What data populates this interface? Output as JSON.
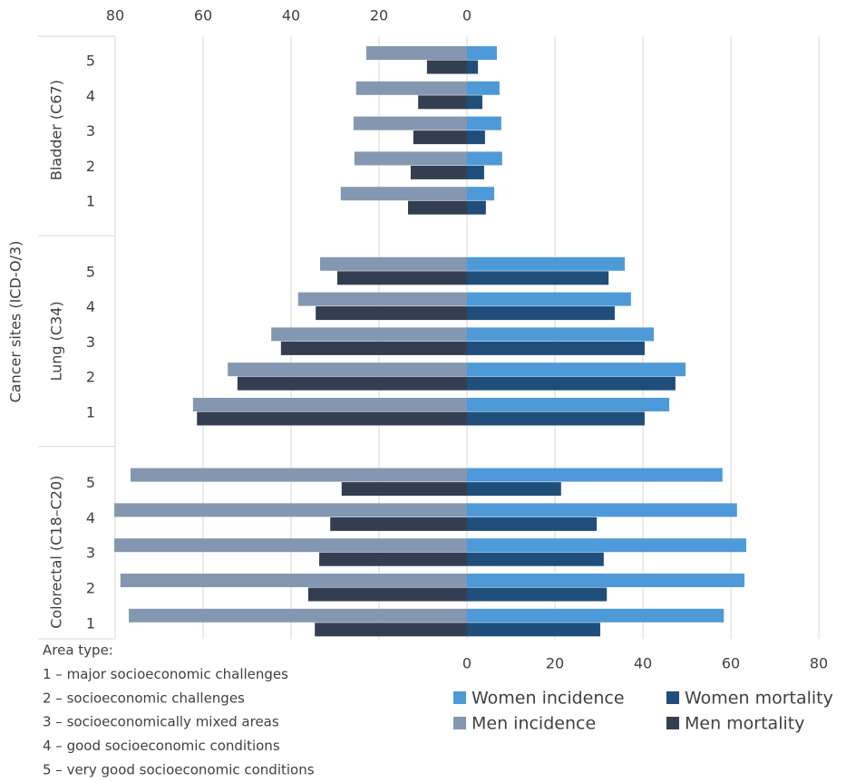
{
  "chart_data": {
    "type": "bar",
    "orientation": "horizontal",
    "y_axis_label": "Cancer sites (ICD-O/3)",
    "groups": [
      "Bladder (C67)",
      "Lung (C34)",
      "Colorectal (C18–C20)"
    ],
    "categories": [
      "5",
      "4",
      "3",
      "2",
      "1",
      "5",
      "4",
      "3",
      "2",
      "1",
      "5",
      "4",
      "3",
      "2",
      "1"
    ],
    "xlim": [
      0,
      80
    ],
    "xticks": [
      0,
      20,
      40,
      60,
      80
    ],
    "x2lim": [
      80,
      0
    ],
    "x2ticks": [
      80,
      60,
      40,
      20,
      0
    ],
    "grid": true,
    "series": [
      {
        "name": "Women incidence",
        "color": "#4e9ad8",
        "values": [
          6.8,
          7.4,
          7.8,
          8.0,
          6.2,
          35.9,
          37.3,
          42.5,
          49.7,
          46.0,
          58.1,
          61.4,
          63.5,
          63.1,
          58.4
        ]
      },
      {
        "name": "Women mortality",
        "color": "#1f4e7a",
        "values": [
          2.5,
          3.5,
          4.1,
          3.9,
          4.3,
          32.2,
          33.6,
          40.4,
          47.4,
          40.4,
          21.4,
          29.5,
          31.1,
          31.8,
          30.3
        ]
      },
      {
        "name": "Men incidence",
        "color": "#8497b0",
        "axis": "x2",
        "values": [
          22.9,
          25.2,
          25.8,
          25.6,
          28.7,
          33.4,
          38.4,
          44.5,
          54.4,
          62.3,
          76.5,
          80.2,
          80.2,
          78.8,
          76.9
        ]
      },
      {
        "name": "Men mortality",
        "color": "#333f50",
        "axis": "x2",
        "values": [
          9.1,
          11.1,
          12.2,
          12.8,
          13.4,
          29.5,
          34.4,
          42.3,
          52.2,
          61.4,
          28.5,
          31.1,
          33.6,
          36.1,
          34.6
        ]
      }
    ],
    "notes": [
      "Area type:",
      "1 – major socioeconomic challenges",
      "2 – socioeconomic challenges",
      "3 – socioeconomically mixed areas",
      "4 – good socioeconomic conditions",
      "5 – very good socioeconomic conditions"
    ]
  }
}
